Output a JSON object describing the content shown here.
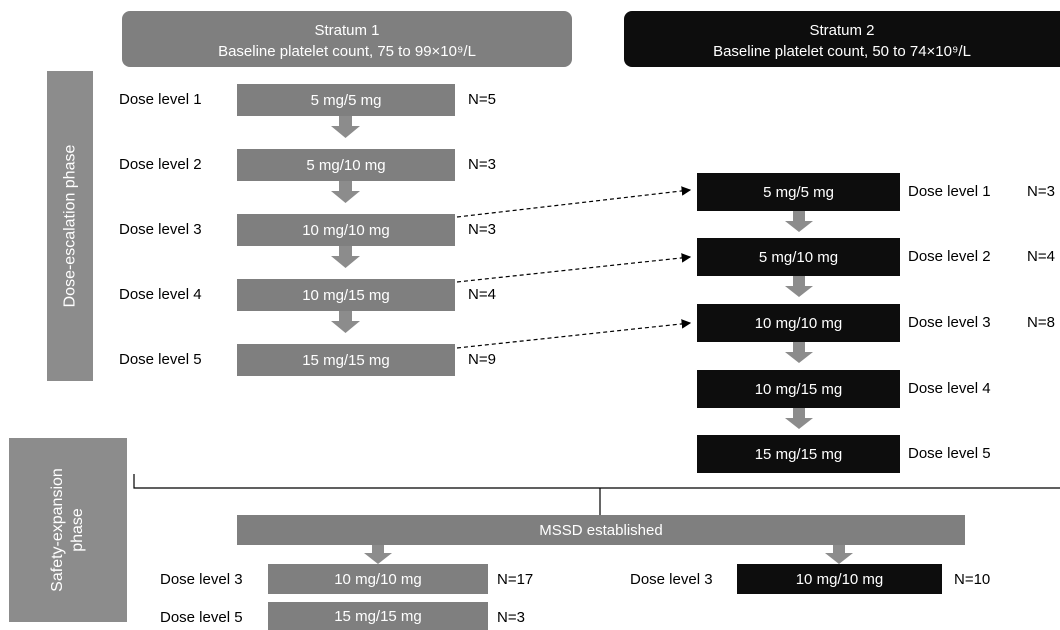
{
  "stratum1": {
    "title": "Stratum 1",
    "subtitle": "Baseline platelet count, 75 to 99×10⁹/L",
    "rows": [
      {
        "level": "Dose level 1",
        "dose": "5 mg/5 mg",
        "n": "N=5"
      },
      {
        "level": "Dose level 2",
        "dose": "5 mg/10 mg",
        "n": "N=3"
      },
      {
        "level": "Dose level 3",
        "dose": "10 mg/10 mg",
        "n": "N=3"
      },
      {
        "level": "Dose level 4",
        "dose": "10 mg/15 mg",
        "n": "N=4"
      },
      {
        "level": "Dose level 5",
        "dose": "15 mg/15 mg",
        "n": "N=9"
      }
    ]
  },
  "stratum2": {
    "title": "Stratum 2",
    "subtitle": "Baseline platelet count, 50 to 74×10⁹/L",
    "rows": [
      {
        "level": "Dose level 1",
        "dose": "5 mg/5 mg",
        "n": "N=3"
      },
      {
        "level": "Dose level 2",
        "dose": "5 mg/10 mg",
        "n": "N=4"
      },
      {
        "level": "Dose level 3",
        "dose": "10 mg/10 mg",
        "n": "N=8"
      },
      {
        "level": "Dose level 4",
        "dose": "10 mg/15 mg",
        "n": ""
      },
      {
        "level": "Dose level 5",
        "dose": "15 mg/15 mg",
        "n": ""
      }
    ]
  },
  "phases": {
    "escalation": "Dose-escalation phase",
    "expansion_line1": "Safety-expansion",
    "expansion_line2": "phase"
  },
  "mssd": "MSSD established",
  "expansion": {
    "stratum1": [
      {
        "level": "Dose level 3",
        "dose": "10 mg/10 mg",
        "n": "N=17"
      },
      {
        "level": "Dose level 5",
        "dose": "15 mg/15 mg",
        "n": "N=3"
      }
    ],
    "stratum2": [
      {
        "level": "Dose level 3",
        "dose": "10 mg/10 mg",
        "n": "N=10"
      }
    ]
  },
  "colors": {
    "stratum1": "#7f7f7f",
    "stratum2": "#0d0d0d",
    "phase": "#8c8c8c"
  }
}
